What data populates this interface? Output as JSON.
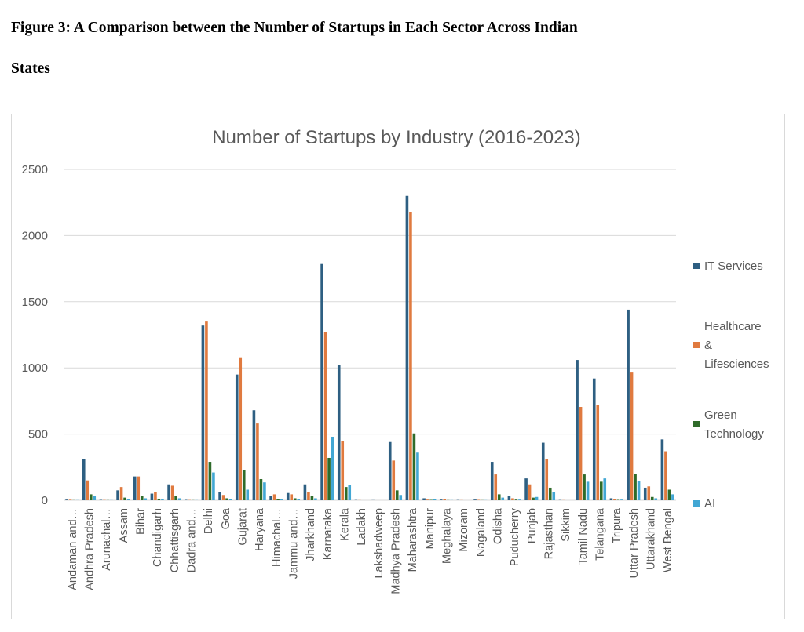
{
  "caption": {
    "line1": "Figure 3: A Comparison between the Number of Startups in Each Sector Across Indian",
    "line2": "States"
  },
  "chart_data": {
    "type": "bar",
    "title": "Number of Startups by Industry (2016-2023)",
    "xlabel": "",
    "ylabel": "",
    "ylim": [
      0,
      2500
    ],
    "yticks": [
      0,
      500,
      1000,
      1500,
      2000,
      2500
    ],
    "grid": true,
    "legend_position": "right",
    "categories": [
      "Andaman and…",
      "Andhra Pradesh",
      "Arunachal…",
      "Assam",
      "Bihar",
      "Chandigarh",
      "Chhattisgarh",
      "Dadra and…",
      "Delhi",
      "Goa",
      "Gujarat",
      "Haryana",
      "Himachal…",
      "Jammu and…",
      "Jharkhand",
      "Karnataka",
      "Kerala",
      "Ladakh",
      "Lakshadweep",
      "Madhya Pradesh",
      "Maharashtra",
      "Manipur",
      "Meghalaya",
      "Mizoram",
      "Nagaland",
      "Odisha",
      "Puducherry",
      "Punjab",
      "Rajasthan",
      "Sikkim",
      "Tamil Nadu",
      "Telangana",
      "Tripura",
      "Uttar Pradesh",
      "Uttarakhand",
      "West Bengal"
    ],
    "series": [
      {
        "name": "IT Services",
        "legend_lines": [
          "IT Services"
        ],
        "color": "#2e5f82",
        "values": [
          5,
          310,
          3,
          75,
          180,
          50,
          120,
          3,
          1320,
          60,
          950,
          680,
          35,
          55,
          120,
          1785,
          1020,
          2,
          1,
          440,
          2300,
          15,
          5,
          2,
          5,
          290,
          30,
          165,
          435,
          2,
          1060,
          920,
          15,
          1440,
          95,
          460
        ]
      },
      {
        "name": "Healthcare & Lifesciences",
        "legend_lines": [
          "Healthcare",
          "&",
          "Lifesciences"
        ],
        "color": "#e07a3f",
        "values": [
          4,
          150,
          2,
          100,
          180,
          65,
          110,
          2,
          1350,
          40,
          1080,
          580,
          45,
          45,
          60,
          1270,
          445,
          1,
          0,
          300,
          2180,
          5,
          8,
          1,
          3,
          195,
          15,
          120,
          310,
          1,
          705,
          720,
          10,
          965,
          105,
          370
        ]
      },
      {
        "name": "Green Technology",
        "legend_lines": [
          "Green",
          "Technology"
        ],
        "color": "#2f6b2a",
        "values": [
          1,
          45,
          1,
          20,
          35,
          10,
          30,
          1,
          290,
          15,
          230,
          160,
          10,
          15,
          30,
          320,
          100,
          0,
          0,
          75,
          505,
          3,
          1,
          0,
          1,
          45,
          5,
          20,
          95,
          0,
          195,
          140,
          3,
          200,
          25,
          80
        ]
      },
      {
        "name": "AI",
        "legend_lines": [
          "AI"
        ],
        "color": "#42a7d4",
        "values": [
          1,
          35,
          1,
          10,
          15,
          8,
          15,
          1,
          210,
          10,
          80,
          135,
          8,
          10,
          15,
          480,
          115,
          0,
          0,
          40,
          360,
          10,
          1,
          0,
          1,
          20,
          5,
          25,
          60,
          0,
          140,
          165,
          5,
          145,
          15,
          45
        ]
      }
    ]
  }
}
